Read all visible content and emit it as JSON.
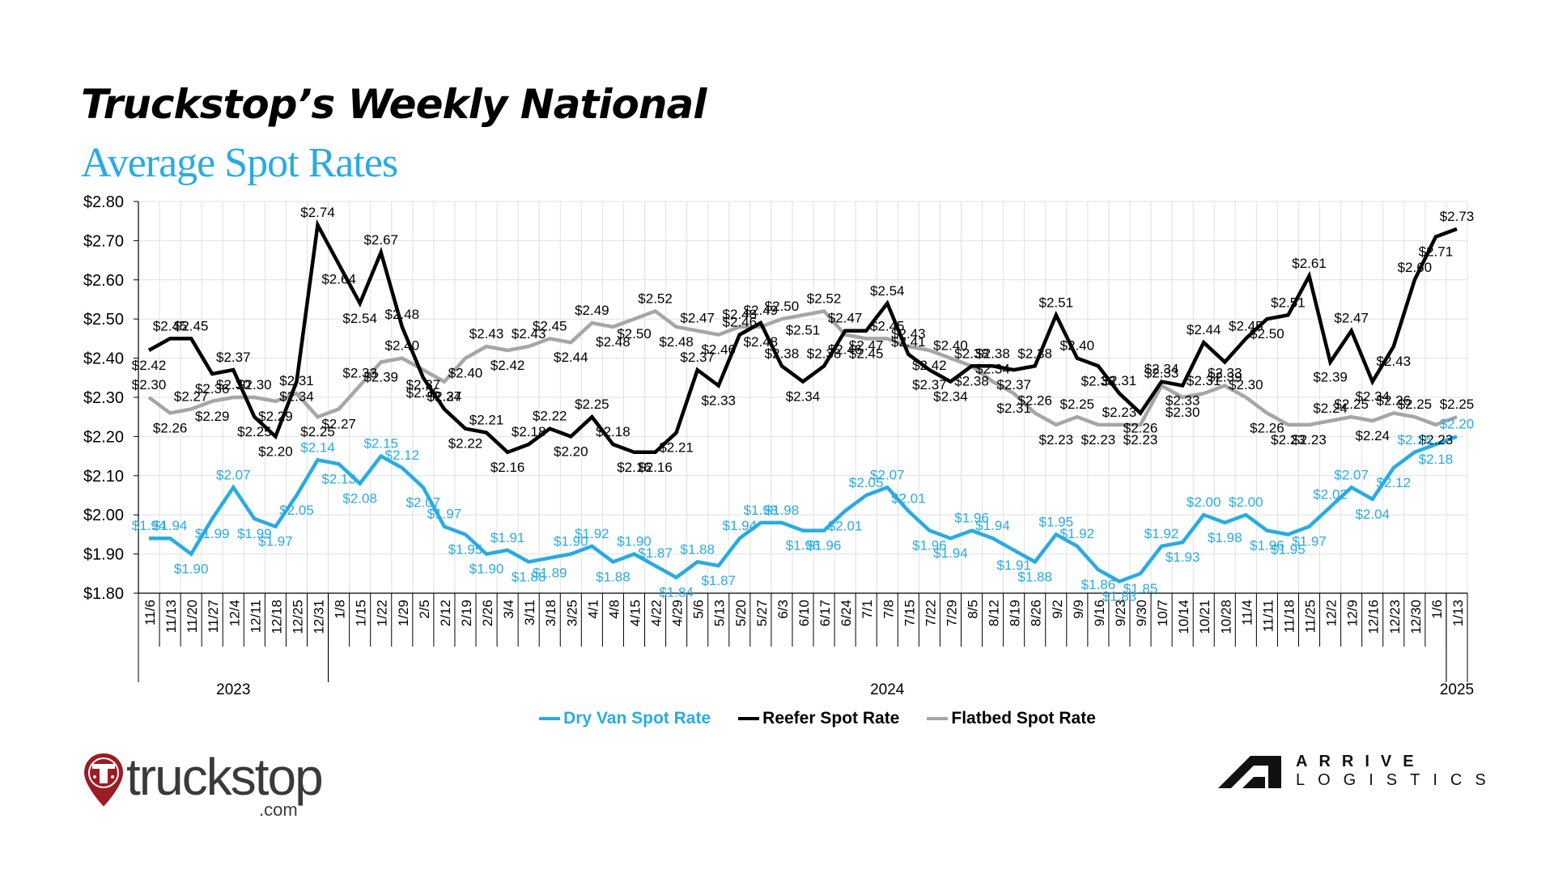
{
  "header": {
    "title": "Truckstop’s Weekly National",
    "subtitle": "Average Spot Rates"
  },
  "colors": {
    "dry_van": "#29abe2",
    "reefer": "#000000",
    "flatbed": "#a6a6a6",
    "grid": "#e0e0e0",
    "truckstop_red": "#9b1c24"
  },
  "chart_data": {
    "type": "line",
    "title": "Truckstop’s Weekly National Average Spot Rates",
    "xlabel": "",
    "ylabel": "",
    "ylim": [
      1.8,
      2.8
    ],
    "yticks": [
      "$2.80",
      "$2.70",
      "$2.60",
      "$2.50",
      "$2.40",
      "$2.30",
      "$2.20",
      "$2.10",
      "$2.00",
      "$1.90",
      "$1.80"
    ],
    "grid": true,
    "legend_position": "bottom",
    "x": [
      "11/6",
      "11/13",
      "11/20",
      "11/27",
      "12/4",
      "12/11",
      "12/18",
      "12/25",
      "12/31",
      "1/8",
      "1/15",
      "1/22",
      "1/29",
      "2/5",
      "2/12",
      "2/19",
      "2/26",
      "3/4",
      "3/11",
      "3/18",
      "3/25",
      "4/1",
      "4/8",
      "4/15",
      "4/22",
      "4/29",
      "5/6",
      "5/13",
      "5/20",
      "5/27",
      "6/3",
      "6/10",
      "6/17",
      "6/24",
      "7/1",
      "7/8",
      "7/15",
      "7/22",
      "7/29",
      "8/5",
      "8/12",
      "8/19",
      "8/26",
      "9/2",
      "9/9",
      "9/16",
      "9/23",
      "9/30",
      "10/7",
      "10/14",
      "10/21",
      "10/28",
      "11/4",
      "11/11",
      "11/18",
      "11/25",
      "12/2",
      "12/9",
      "12/16",
      "12/23",
      "12/30",
      "1/6",
      "1/13"
    ],
    "year_groups": [
      {
        "label": "2023",
        "start": 0,
        "end": 8
      },
      {
        "label": "2024",
        "start": 9,
        "end": 61
      },
      {
        "label": "2025",
        "start": 62,
        "end": 62
      }
    ],
    "series": [
      {
        "name": "Dry Van Spot Rate",
        "key": "dry_van",
        "values": [
          1.94,
          1.94,
          1.9,
          1.99,
          2.07,
          1.99,
          1.97,
          2.05,
          2.14,
          2.13,
          2.08,
          2.15,
          2.12,
          2.07,
          1.97,
          1.95,
          1.9,
          1.91,
          1.88,
          1.89,
          1.9,
          1.92,
          1.88,
          1.9,
          1.87,
          1.84,
          1.88,
          1.87,
          1.94,
          1.98,
          1.98,
          1.96,
          1.96,
          2.01,
          2.05,
          2.07,
          2.01,
          1.96,
          1.94,
          1.96,
          1.94,
          1.91,
          1.88,
          1.95,
          1.92,
          1.86,
          1.83,
          1.85,
          1.92,
          1.93,
          2.0,
          1.98,
          2.0,
          1.96,
          1.95,
          1.97,
          2.02,
          2.07,
          2.04,
          2.12,
          2.16,
          2.18,
          2.2
        ]
      },
      {
        "name": "Reefer Spot Rate",
        "key": "reefer",
        "values": [
          2.42,
          2.45,
          2.45,
          2.36,
          2.37,
          2.25,
          2.2,
          2.34,
          2.74,
          2.64,
          2.54,
          2.67,
          2.48,
          2.35,
          2.27,
          2.22,
          2.21,
          2.16,
          2.18,
          2.22,
          2.2,
          2.25,
          2.18,
          2.16,
          2.16,
          2.21,
          2.37,
          2.33,
          2.46,
          2.49,
          2.38,
          2.34,
          2.38,
          2.47,
          2.47,
          2.54,
          2.41,
          2.37,
          2.34,
          2.38,
          2.38,
          2.37,
          2.38,
          2.51,
          2.4,
          2.38,
          2.31,
          2.26,
          2.34,
          2.33,
          2.44,
          2.39,
          2.45,
          2.5,
          2.51,
          2.61,
          2.39,
          2.47,
          2.34,
          2.43,
          2.6,
          2.71,
          2.73
        ]
      },
      {
        "name": "Flatbed Spot Rate",
        "key": "flatbed",
        "values": [
          2.3,
          2.26,
          2.27,
          2.29,
          2.3,
          2.3,
          2.29,
          2.31,
          2.25,
          2.27,
          2.33,
          2.39,
          2.4,
          2.37,
          2.34,
          2.4,
          2.43,
          2.42,
          2.43,
          2.45,
          2.44,
          2.49,
          2.48,
          2.5,
          2.52,
          2.48,
          2.47,
          2.46,
          2.48,
          2.48,
          2.5,
          2.51,
          2.52,
          2.46,
          2.45,
          2.45,
          2.43,
          2.42,
          2.4,
          2.38,
          2.34,
          2.31,
          2.26,
          2.23,
          2.25,
          2.23,
          2.23,
          2.23,
          2.33,
          2.3,
          2.31,
          2.33,
          2.3,
          2.26,
          2.23,
          2.23,
          2.24,
          2.25,
          2.24,
          2.26,
          2.25,
          2.23,
          2.25
        ]
      }
    ]
  },
  "legend": {
    "items": [
      {
        "label": "Dry Van Spot Rate"
      },
      {
        "label": "Reefer Spot Rate"
      },
      {
        "label": "Flatbed Spot Rate"
      }
    ]
  },
  "logos": {
    "truckstop": {
      "name": "truckstop",
      "suffix": ".com"
    },
    "arrive": {
      "top": "ARRIVE",
      "bottom": "LOGISTICS"
    }
  }
}
